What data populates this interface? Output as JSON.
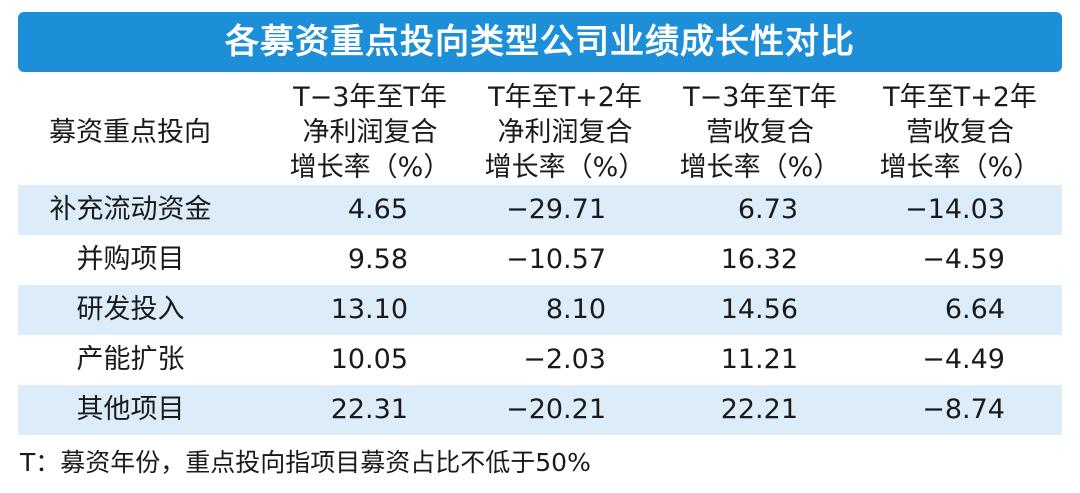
{
  "header": {
    "title": "各募资重点投向类型公司业绩成长性对比"
  },
  "table": {
    "columns": [
      [
        "募资重点投向"
      ],
      [
        "T−3年至T年",
        "净利润复合",
        "增长率（%）"
      ],
      [
        "T年至T+2年",
        "净利润复合",
        "增长率（%）"
      ],
      [
        "T−3年至T年",
        "营收复合",
        "增长率（%）"
      ],
      [
        "T年至T+2年",
        "营收复合",
        "增长率（%）"
      ]
    ],
    "rows": [
      [
        "补充流动资金",
        "4.65",
        "−29.71",
        "6.73",
        "−14.03"
      ],
      [
        "并购项目",
        "9.58",
        "−10.57",
        "16.32",
        "−4.59"
      ],
      [
        "研发投入",
        "13.10",
        "8.10",
        "14.56",
        "6.64"
      ],
      [
        "产能扩张",
        "10.05",
        "−2.03",
        "11.21",
        "−4.49"
      ],
      [
        "其他项目",
        "22.31",
        "−20.21",
        "22.21",
        "−8.74"
      ]
    ]
  },
  "footnote": "T：募资年份，重点投向指项目募资占比不低于50%"
}
